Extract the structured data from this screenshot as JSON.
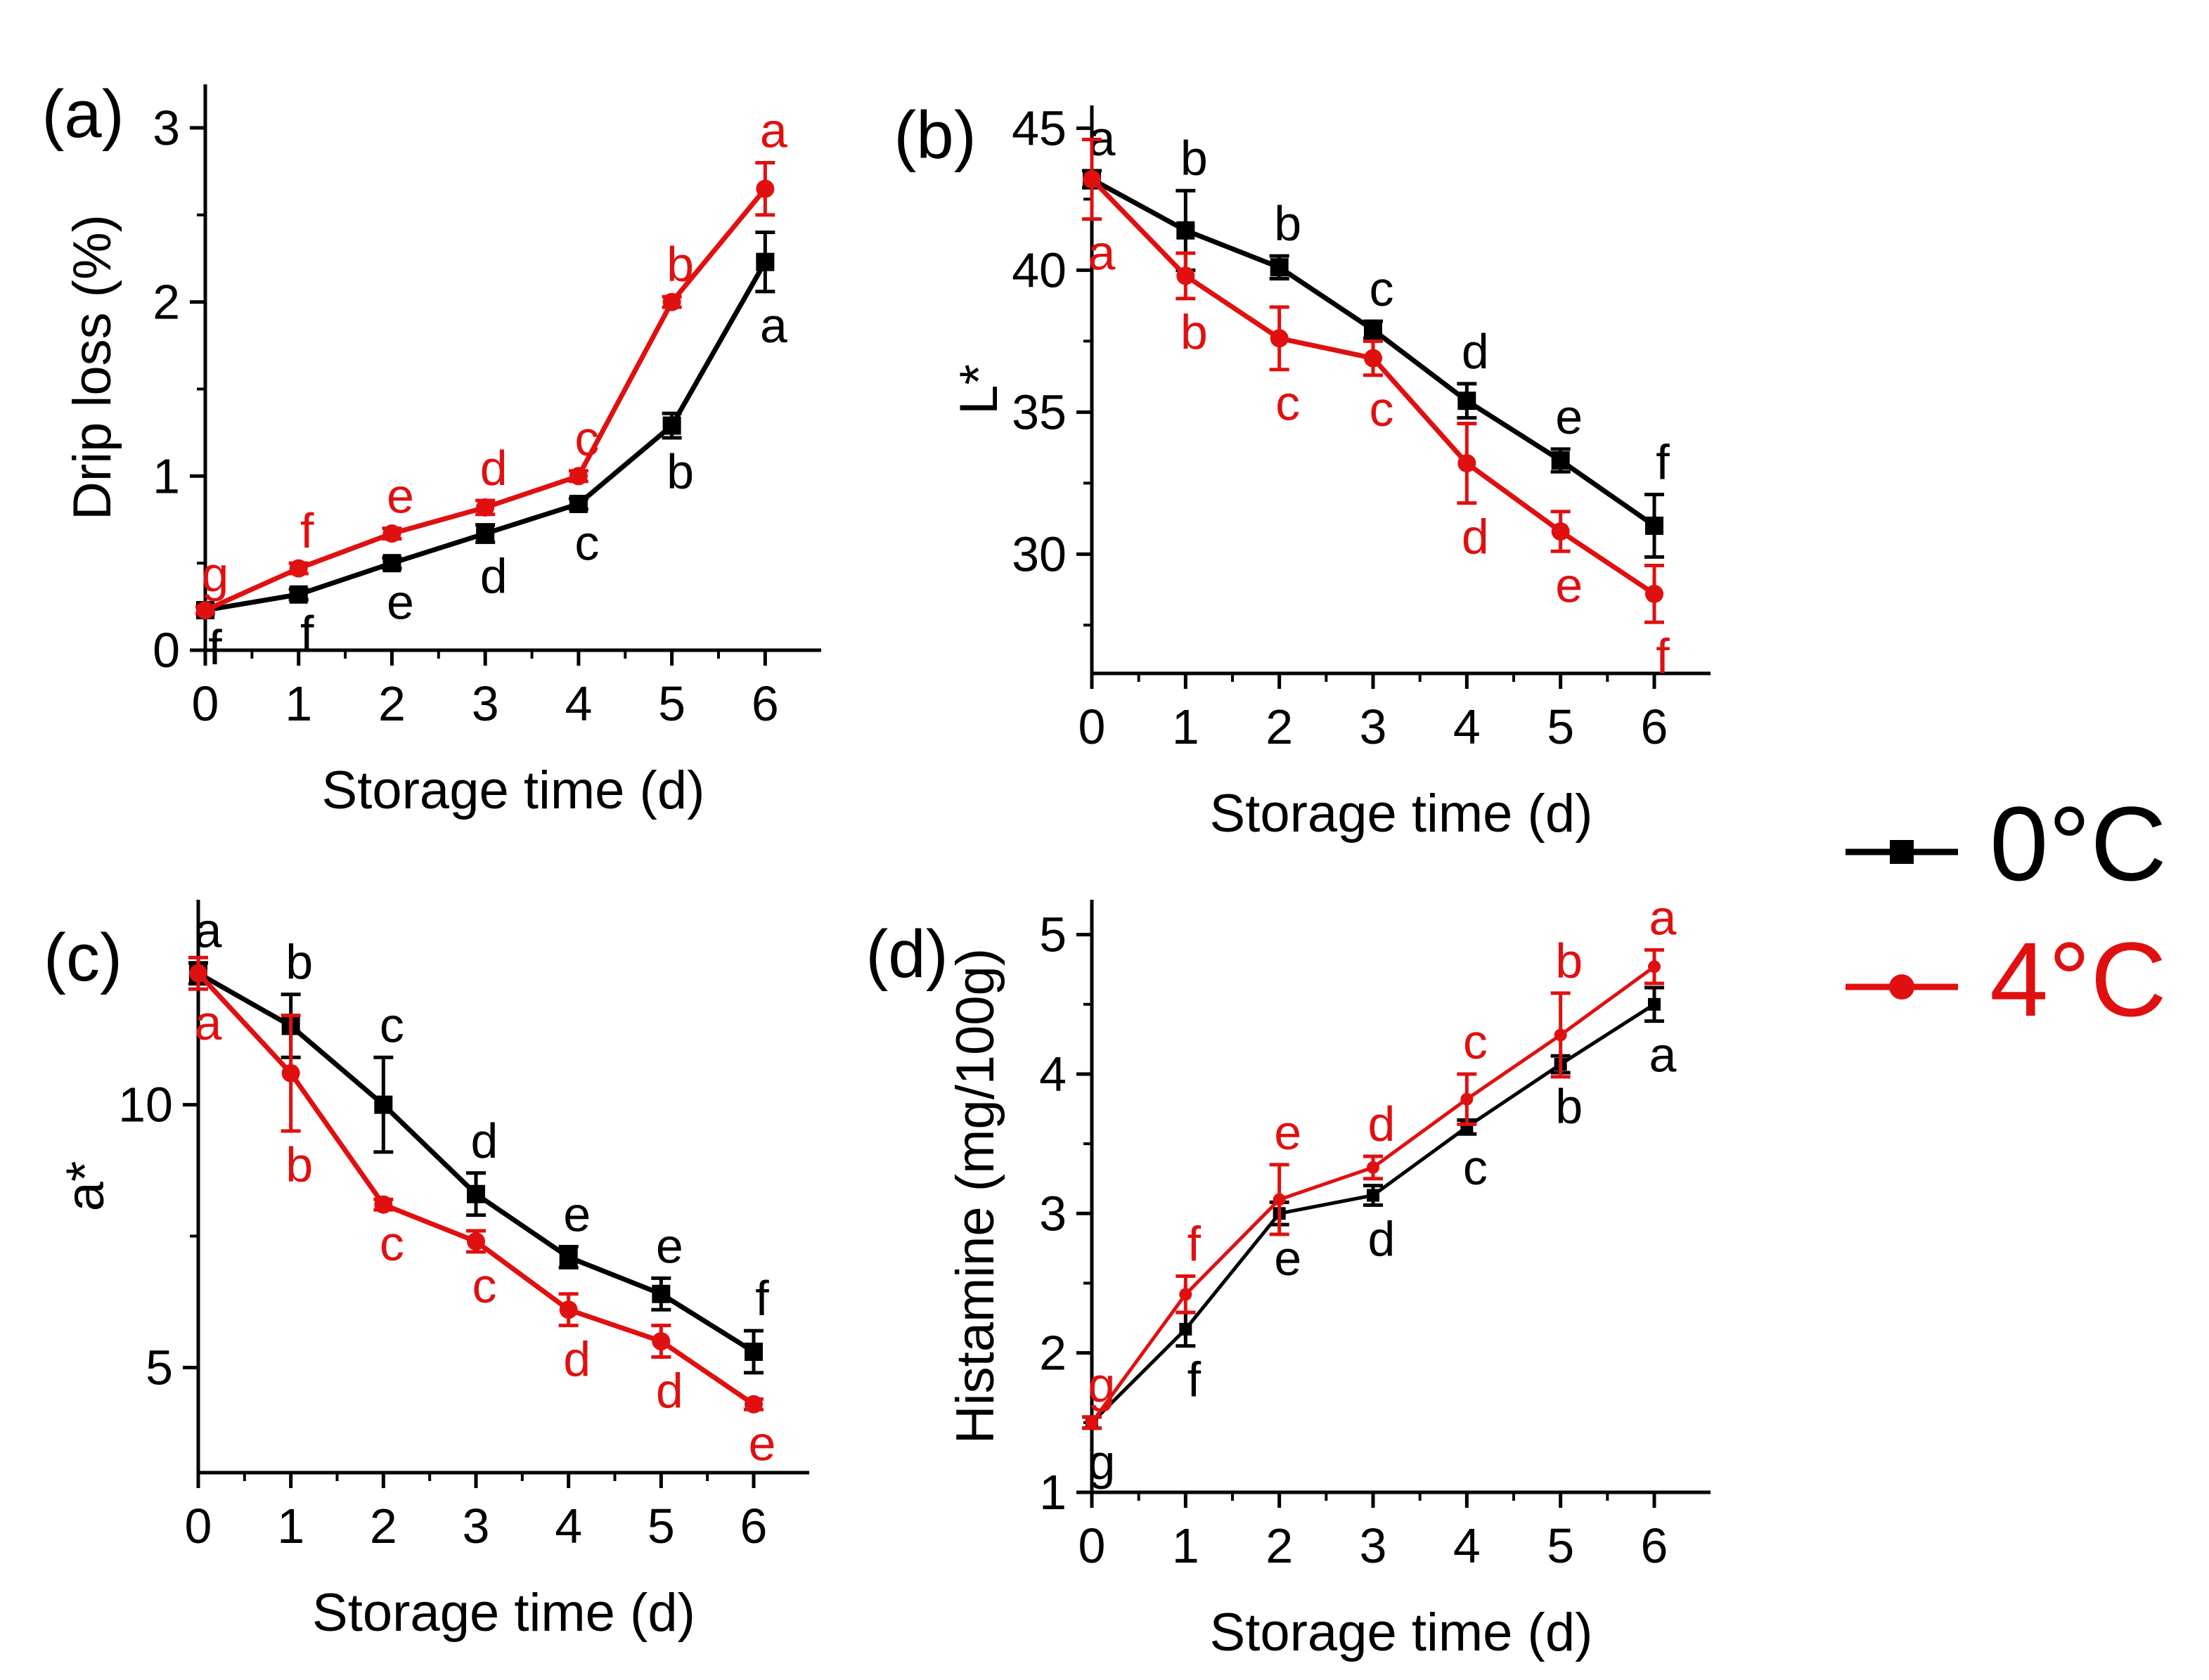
{
  "legend": {
    "placement": "right",
    "entries": [
      {
        "label": "0°C",
        "color": "#000000",
        "marker": "square"
      },
      {
        "label": "4°C",
        "color": "#e01010",
        "marker": "circle"
      }
    ]
  },
  "chart_data": [
    {
      "type": "line",
      "panel_label": "(a)",
      "xlabel": "Storage time (d)",
      "ylabel": "Drip loss (%)",
      "x": [
        0,
        1,
        2,
        3,
        4,
        5,
        6
      ],
      "x_ticks": [
        "0",
        "1",
        "2",
        "3",
        "4",
        "5",
        "6"
      ],
      "xlim": [
        0,
        6.6
      ],
      "y_ticks": [
        "0",
        "1",
        "2",
        "3"
      ],
      "y_tick_values": [
        0,
        1,
        2,
        3
      ],
      "ylim": [
        0,
        3.25
      ],
      "series": [
        {
          "name": "0°C",
          "values": [
            0.23,
            0.32,
            0.5,
            0.67,
            0.84,
            1.29,
            2.23
          ],
          "errors": [
            0.02,
            0.03,
            0.03,
            0.05,
            0.03,
            0.07,
            0.17
          ],
          "letters": [
            "f",
            "f",
            "e",
            "d",
            "c",
            "b",
            "a"
          ],
          "letter_pos": [
            "below",
            "below",
            "below",
            "below",
            "below",
            "below",
            "below"
          ]
        },
        {
          "name": "4°C",
          "values": [
            0.23,
            0.47,
            0.67,
            0.82,
            1.0,
            2.0,
            2.65
          ],
          "errors": [
            0.02,
            0.03,
            0.03,
            0.04,
            0.03,
            0.03,
            0.15
          ],
          "letters": [
            "g",
            "f",
            "e",
            "d",
            "c",
            "b",
            "a"
          ],
          "letter_pos": [
            "above",
            "above",
            "above",
            "above",
            "above",
            "above",
            "above"
          ]
        }
      ]
    },
    {
      "type": "line",
      "panel_label": "(b)",
      "xlabel": "Storage time (d)",
      "ylabel": "L*",
      "x": [
        0,
        1,
        2,
        3,
        4,
        5,
        6
      ],
      "x_ticks": [
        "0",
        "1",
        "2",
        "3",
        "4",
        "5",
        "6"
      ],
      "xlim": [
        0,
        6.6
      ],
      "y_ticks": [
        "30",
        "35",
        "40",
        "45"
      ],
      "y_tick_values": [
        30,
        35,
        40,
        45
      ],
      "ylim": [
        25.8,
        45.8
      ],
      "series": [
        {
          "name": "0°C",
          "values": [
            43.2,
            41.4,
            40.1,
            37.9,
            35.4,
            33.3,
            31.0
          ],
          "errors": [
            0.3,
            1.4,
            0.4,
            0.3,
            0.6,
            0.4,
            1.1
          ],
          "letters": [
            "a",
            "b",
            "b",
            "c",
            "d",
            "e",
            "f"
          ],
          "letter_pos": [
            "above",
            "above",
            "above",
            "above",
            "above",
            "above",
            "above"
          ]
        },
        {
          "name": "4°C",
          "values": [
            43.2,
            39.8,
            37.6,
            36.9,
            33.2,
            30.8,
            28.6
          ],
          "errors": [
            1.4,
            0.8,
            1.1,
            0.6,
            1.4,
            0.7,
            1.0
          ],
          "letters": [
            "a",
            "b",
            "c",
            "c",
            "d",
            "e",
            "f"
          ],
          "letter_pos": [
            "below",
            "below",
            "below",
            "below",
            "below",
            "below",
            "below"
          ]
        }
      ]
    },
    {
      "type": "line",
      "panel_label": "(c)",
      "xlabel": "Storage time (d)",
      "ylabel": "a*",
      "x": [
        0,
        1,
        2,
        3,
        4,
        5,
        6
      ],
      "x_ticks": [
        "0",
        "1",
        "2",
        "3",
        "4",
        "5",
        "6"
      ],
      "xlim": [
        0,
        6.6
      ],
      "y_ticks": [
        "5",
        "10"
      ],
      "y_tick_values": [
        5,
        10
      ],
      "ylim": [
        3.0,
        13.9
      ],
      "series": [
        {
          "name": "0°C",
          "values": [
            12.5,
            11.5,
            10.0,
            8.3,
            7.1,
            6.4,
            5.3
          ],
          "errors": [
            0.2,
            0.6,
            0.9,
            0.4,
            0.2,
            0.3,
            0.4
          ],
          "letters": [
            "a",
            "b",
            "c",
            "d",
            "e",
            "e",
            "f"
          ],
          "letter_pos": [
            "above",
            "above",
            "above",
            "above",
            "above",
            "above",
            "above"
          ]
        },
        {
          "name": "4°C",
          "values": [
            12.5,
            10.6,
            8.1,
            7.4,
            6.1,
            5.5,
            4.3
          ],
          "errors": [
            0.3,
            1.1,
            0.1,
            0.2,
            0.3,
            0.3,
            0.1
          ],
          "letters": [
            "a",
            "b",
            "c",
            "c",
            "d",
            "d",
            "e"
          ],
          "letter_pos": [
            "below",
            "below",
            "below",
            "below",
            "below",
            "below",
            "below"
          ]
        }
      ]
    },
    {
      "type": "line",
      "panel_label": "(d)",
      "xlabel": "Storage time (d)",
      "ylabel": "Histamine (mg/100g)",
      "x": [
        0,
        1,
        2,
        3,
        4,
        5,
        6
      ],
      "x_ticks": [
        "0",
        "1",
        "2",
        "3",
        "4",
        "5",
        "6"
      ],
      "xlim": [
        0,
        6.6
      ],
      "y_ticks": [
        "1",
        "2",
        "3",
        "4",
        "5"
      ],
      "y_tick_values": [
        1,
        2,
        3,
        4,
        5
      ],
      "ylim": [
        1,
        5.25
      ],
      "series": [
        {
          "name": "0°C",
          "values": [
            1.5,
            2.17,
            3.0,
            3.13,
            3.62,
            4.07,
            4.5
          ],
          "errors": [
            0.04,
            0.12,
            0.08,
            0.07,
            0.05,
            0.06,
            0.12
          ],
          "letters": [
            "g",
            "f",
            "e",
            "d",
            "c",
            "b",
            "a"
          ],
          "letter_pos": [
            "below",
            "below",
            "below",
            "below",
            "below",
            "below",
            "below"
          ]
        },
        {
          "name": "4°C",
          "values": [
            1.5,
            2.42,
            3.1,
            3.33,
            3.82,
            4.28,
            4.77
          ],
          "errors": [
            0.04,
            0.13,
            0.25,
            0.08,
            0.18,
            0.3,
            0.12
          ],
          "letters": [
            "g",
            "f",
            "e",
            "d",
            "c",
            "b",
            "a"
          ],
          "letter_pos": [
            "above",
            "above",
            "above",
            "above",
            "above",
            "above",
            "above"
          ]
        }
      ]
    }
  ]
}
